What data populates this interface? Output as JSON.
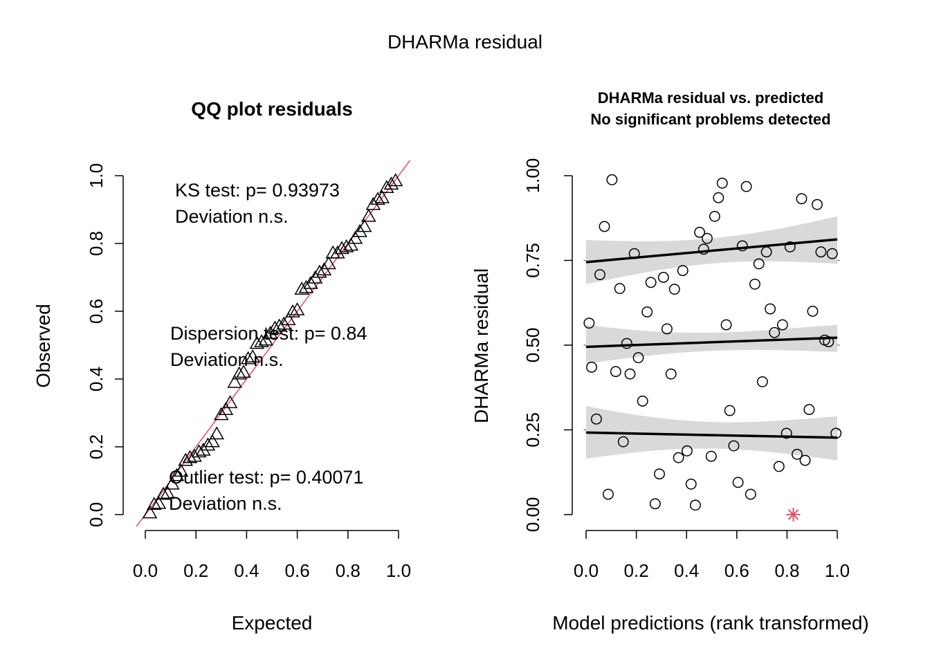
{
  "figure": {
    "title": "DHARMa residual"
  },
  "chart_data": [
    {
      "type": "scatter",
      "title": "QQ plot residuals",
      "xlabel": "Expected",
      "ylabel": "Observed",
      "xlim": [
        0,
        1
      ],
      "ylim": [
        0,
        1
      ],
      "x_ticks": [
        "0.0",
        "0.2",
        "0.4",
        "0.6",
        "0.8",
        "1.0"
      ],
      "y_ticks": [
        "0.0",
        "0.2",
        "0.4",
        "0.6",
        "0.8",
        "1.0"
      ],
      "marker": "triangle",
      "reference_line": {
        "slope": 1,
        "intercept": 0,
        "color": "#DF536B"
      },
      "annotations": [
        {
          "line1": "KS test: p= 0.93973",
          "line2": "Deviation  n.s."
        },
        {
          "line1": "Dispersion test: p= 0.84",
          "line2": "Deviation  n.s."
        },
        {
          "line1": "Outlier test: p= 0.40071",
          "line2": "Deviation  n.s."
        }
      ],
      "points": [
        {
          "x": 0.018,
          "y": 0.005
        },
        {
          "x": 0.035,
          "y": 0.03
        },
        {
          "x": 0.053,
          "y": 0.033
        },
        {
          "x": 0.071,
          "y": 0.06
        },
        {
          "x": 0.088,
          "y": 0.063
        },
        {
          "x": 0.106,
          "y": 0.09
        },
        {
          "x": 0.124,
          "y": 0.115
        },
        {
          "x": 0.141,
          "y": 0.128
        },
        {
          "x": 0.159,
          "y": 0.16
        },
        {
          "x": 0.176,
          "y": 0.168
        },
        {
          "x": 0.194,
          "y": 0.172
        },
        {
          "x": 0.212,
          "y": 0.185
        },
        {
          "x": 0.229,
          "y": 0.19
        },
        {
          "x": 0.247,
          "y": 0.205
        },
        {
          "x": 0.265,
          "y": 0.215
        },
        {
          "x": 0.282,
          "y": 0.238
        },
        {
          "x": 0.3,
          "y": 0.295
        },
        {
          "x": 0.318,
          "y": 0.31
        },
        {
          "x": 0.335,
          "y": 0.33
        },
        {
          "x": 0.353,
          "y": 0.39
        },
        {
          "x": 0.371,
          "y": 0.415
        },
        {
          "x": 0.388,
          "y": 0.42
        },
        {
          "x": 0.406,
          "y": 0.46
        },
        {
          "x": 0.424,
          "y": 0.465
        },
        {
          "x": 0.441,
          "y": 0.505
        },
        {
          "x": 0.459,
          "y": 0.51
        },
        {
          "x": 0.476,
          "y": 0.515
        },
        {
          "x": 0.494,
          "y": 0.535
        },
        {
          "x": 0.512,
          "y": 0.55
        },
        {
          "x": 0.529,
          "y": 0.556
        },
        {
          "x": 0.547,
          "y": 0.562
        },
        {
          "x": 0.565,
          "y": 0.575
        },
        {
          "x": 0.582,
          "y": 0.598
        },
        {
          "x": 0.6,
          "y": 0.604
        },
        {
          "x": 0.618,
          "y": 0.665
        },
        {
          "x": 0.635,
          "y": 0.67
        },
        {
          "x": 0.653,
          "y": 0.682
        },
        {
          "x": 0.671,
          "y": 0.698
        },
        {
          "x": 0.688,
          "y": 0.715
        },
        {
          "x": 0.706,
          "y": 0.722
        },
        {
          "x": 0.724,
          "y": 0.74
        },
        {
          "x": 0.741,
          "y": 0.772
        },
        {
          "x": 0.759,
          "y": 0.772
        },
        {
          "x": 0.776,
          "y": 0.785
        },
        {
          "x": 0.794,
          "y": 0.79
        },
        {
          "x": 0.812,
          "y": 0.795
        },
        {
          "x": 0.829,
          "y": 0.815
        },
        {
          "x": 0.847,
          "y": 0.835
        },
        {
          "x": 0.865,
          "y": 0.85
        },
        {
          "x": 0.882,
          "y": 0.88
        },
        {
          "x": 0.9,
          "y": 0.915
        },
        {
          "x": 0.918,
          "y": 0.93
        },
        {
          "x": 0.935,
          "y": 0.935
        },
        {
          "x": 0.953,
          "y": 0.965
        },
        {
          "x": 0.971,
          "y": 0.975
        },
        {
          "x": 0.988,
          "y": 0.985
        }
      ]
    },
    {
      "type": "scatter",
      "title": "DHARMa residual vs. predicted",
      "subtitle": "No significant problems detected",
      "xlabel": "Model predictions (rank transformed)",
      "ylabel": "DHARMa residual",
      "xlim": [
        0,
        1
      ],
      "ylim": [
        0,
        1
      ],
      "x_ticks": [
        "0.0",
        "0.2",
        "0.4",
        "0.6",
        "0.8",
        "1.0"
      ],
      "y_ticks": [
        "0.00",
        "0.25",
        "0.50",
        "0.75",
        "1.00"
      ],
      "marker": "circle",
      "reference_levels": [
        0.25,
        0.5,
        0.75
      ],
      "quantile_fits": [
        {
          "quantile": 0.25,
          "start": 0.242,
          "end": 0.227,
          "band_lower_start": 0.165,
          "band_upper_start": 0.32,
          "band_lower_end": 0.16,
          "band_upper_end": 0.29
        },
        {
          "quantile": 0.5,
          "start": 0.495,
          "end": 0.522,
          "band_lower_start": 0.445,
          "band_upper_start": 0.56,
          "band_lower_end": 0.48,
          "band_upper_end": 0.56
        },
        {
          "quantile": 0.75,
          "start": 0.745,
          "end": 0.812,
          "band_lower_start": 0.68,
          "band_upper_start": 0.81,
          "band_lower_end": 0.74,
          "band_upper_end": 0.88
        }
      ],
      "outliers": [
        {
          "x": 0.825,
          "y": 0.0,
          "marker": "asterisk",
          "color": "#DF536B"
        }
      ],
      "points": [
        {
          "x": 0.012,
          "y": 0.565
        },
        {
          "x": 0.022,
          "y": 0.435
        },
        {
          "x": 0.041,
          "y": 0.282
        },
        {
          "x": 0.055,
          "y": 0.708
        },
        {
          "x": 0.073,
          "y": 0.85
        },
        {
          "x": 0.088,
          "y": 0.06
        },
        {
          "x": 0.103,
          "y": 0.988
        },
        {
          "x": 0.118,
          "y": 0.422
        },
        {
          "x": 0.134,
          "y": 0.667
        },
        {
          "x": 0.148,
          "y": 0.215
        },
        {
          "x": 0.162,
          "y": 0.505
        },
        {
          "x": 0.175,
          "y": 0.415
        },
        {
          "x": 0.192,
          "y": 0.77
        },
        {
          "x": 0.208,
          "y": 0.463
        },
        {
          "x": 0.225,
          "y": 0.335
        },
        {
          "x": 0.243,
          "y": 0.598
        },
        {
          "x": 0.258,
          "y": 0.685
        },
        {
          "x": 0.275,
          "y": 0.032
        },
        {
          "x": 0.292,
          "y": 0.12
        },
        {
          "x": 0.308,
          "y": 0.7
        },
        {
          "x": 0.322,
          "y": 0.548
        },
        {
          "x": 0.338,
          "y": 0.415
        },
        {
          "x": 0.352,
          "y": 0.665
        },
        {
          "x": 0.368,
          "y": 0.168
        },
        {
          "x": 0.385,
          "y": 0.72
        },
        {
          "x": 0.402,
          "y": 0.188
        },
        {
          "x": 0.418,
          "y": 0.09
        },
        {
          "x": 0.435,
          "y": 0.028
        },
        {
          "x": 0.452,
          "y": 0.833
        },
        {
          "x": 0.468,
          "y": 0.783
        },
        {
          "x": 0.482,
          "y": 0.815
        },
        {
          "x": 0.498,
          "y": 0.172
        },
        {
          "x": 0.512,
          "y": 0.88
        },
        {
          "x": 0.527,
          "y": 0.935
        },
        {
          "x": 0.542,
          "y": 0.978
        },
        {
          "x": 0.558,
          "y": 0.56
        },
        {
          "x": 0.572,
          "y": 0.307
        },
        {
          "x": 0.588,
          "y": 0.203
        },
        {
          "x": 0.605,
          "y": 0.095
        },
        {
          "x": 0.622,
          "y": 0.793
        },
        {
          "x": 0.638,
          "y": 0.968
        },
        {
          "x": 0.655,
          "y": 0.06
        },
        {
          "x": 0.672,
          "y": 0.68
        },
        {
          "x": 0.688,
          "y": 0.74
        },
        {
          "x": 0.702,
          "y": 0.392
        },
        {
          "x": 0.718,
          "y": 0.775
        },
        {
          "x": 0.733,
          "y": 0.607
        },
        {
          "x": 0.75,
          "y": 0.537
        },
        {
          "x": 0.768,
          "y": 0.142
        },
        {
          "x": 0.782,
          "y": 0.56
        },
        {
          "x": 0.798,
          "y": 0.24
        },
        {
          "x": 0.812,
          "y": 0.79
        },
        {
          "x": 0.84,
          "y": 0.178
        },
        {
          "x": 0.858,
          "y": 0.932
        },
        {
          "x": 0.872,
          "y": 0.16
        },
        {
          "x": 0.888,
          "y": 0.31
        },
        {
          "x": 0.902,
          "y": 0.6
        },
        {
          "x": 0.92,
          "y": 0.915
        },
        {
          "x": 0.935,
          "y": 0.775
        },
        {
          "x": 0.95,
          "y": 0.515
        },
        {
          "x": 0.965,
          "y": 0.51
        },
        {
          "x": 0.98,
          "y": 0.77
        },
        {
          "x": 0.995,
          "y": 0.24
        }
      ]
    }
  ]
}
